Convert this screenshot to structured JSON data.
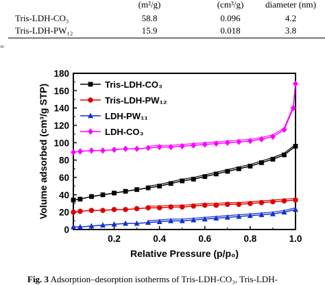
{
  "table": {
    "headers": [
      "(m²/g)",
      "(cm³/g)",
      "diameter (nm)"
    ],
    "rows": [
      {
        "name": "Tris-LDH-CO₃",
        "surface_area": "58.8",
        "pore_volume": "0.096",
        "pore_diameter": "4.2"
      },
      {
        "name": "Tris-LDH-PW₁₂",
        "surface_area": "15.9",
        "pore_volume": "0.018",
        "pore_diameter": "3.8"
      }
    ],
    "side_number": "40"
  },
  "chart_data": {
    "type": "line",
    "xlabel": "Relative Pressure (p/p₀)",
    "ylabel": "Volume adsorbed (cm³/g STP)",
    "xlim": [
      0.02,
      1.0
    ],
    "ylim": [
      0,
      180
    ],
    "xticks": [
      0.2,
      0.4,
      0.6,
      0.8,
      1.0
    ],
    "xtick_labels": [
      "0.2",
      "0.4",
      "0.6",
      "0.8",
      "1.0"
    ],
    "yticks": [
      0,
      20,
      40,
      60,
      80,
      100,
      120,
      140,
      160,
      180
    ],
    "ytick_labels": [
      "0",
      "20",
      "40",
      "60",
      "80",
      "100",
      "120",
      "140",
      "160",
      "180"
    ],
    "legend_position": "top-left",
    "series": [
      {
        "name": "Tris-LDH-CO₃",
        "color": "#000000",
        "marker": "square",
        "x": [
          0.02,
          0.05,
          0.1,
          0.15,
          0.2,
          0.25,
          0.3,
          0.35,
          0.4,
          0.45,
          0.5,
          0.55,
          0.6,
          0.65,
          0.7,
          0.75,
          0.8,
          0.85,
          0.9,
          0.95,
          1.0
        ],
        "y": [
          34,
          35,
          38,
          40,
          42,
          44,
          46,
          48,
          50,
          53,
          56,
          58,
          61,
          64,
          67,
          70,
          73,
          77,
          81,
          86,
          96
        ]
      },
      {
        "name": "Tris-LDH-PW₁₂",
        "color": "#e00000",
        "marker": "circle",
        "x": [
          0.02,
          0.05,
          0.1,
          0.15,
          0.2,
          0.25,
          0.3,
          0.35,
          0.4,
          0.45,
          0.5,
          0.55,
          0.6,
          0.65,
          0.7,
          0.75,
          0.8,
          0.85,
          0.9,
          0.95,
          1.0
        ],
        "y": [
          20,
          21,
          22,
          22,
          23,
          23,
          24,
          25,
          25,
          26,
          26,
          27,
          28,
          28,
          29,
          29,
          30,
          31,
          32,
          33,
          34
        ]
      },
      {
        "name": "LDH-PW₁₁",
        "color": "#1030d0",
        "marker": "triangle",
        "x": [
          0.02,
          0.05,
          0.1,
          0.15,
          0.2,
          0.25,
          0.3,
          0.35,
          0.4,
          0.45,
          0.5,
          0.55,
          0.6,
          0.65,
          0.7,
          0.75,
          0.8,
          0.85,
          0.9,
          0.95,
          1.0
        ],
        "y": [
          3,
          3,
          4,
          5,
          6,
          7,
          7,
          8,
          9,
          10,
          10,
          11,
          12,
          13,
          14,
          15,
          16,
          17,
          18,
          20,
          23
        ]
      },
      {
        "name": "LDH-CO₃",
        "color": "#ff00ff",
        "marker": "diamond",
        "x": [
          0.02,
          0.05,
          0.1,
          0.15,
          0.2,
          0.25,
          0.3,
          0.35,
          0.4,
          0.45,
          0.5,
          0.55,
          0.6,
          0.65,
          0.7,
          0.75,
          0.8,
          0.85,
          0.9,
          0.95,
          0.99,
          1.0
        ],
        "y": [
          89,
          90,
          91,
          91,
          92,
          93,
          93,
          94,
          95,
          95,
          96,
          97,
          98,
          99,
          100,
          101,
          102,
          104,
          107,
          115,
          140,
          168
        ]
      }
    ]
  },
  "caption": {
    "prefix": "Fig. 3",
    "text": "Adsorption–desorption isotherms of Tris-LDH-CO₃, Tris-LDH-"
  }
}
